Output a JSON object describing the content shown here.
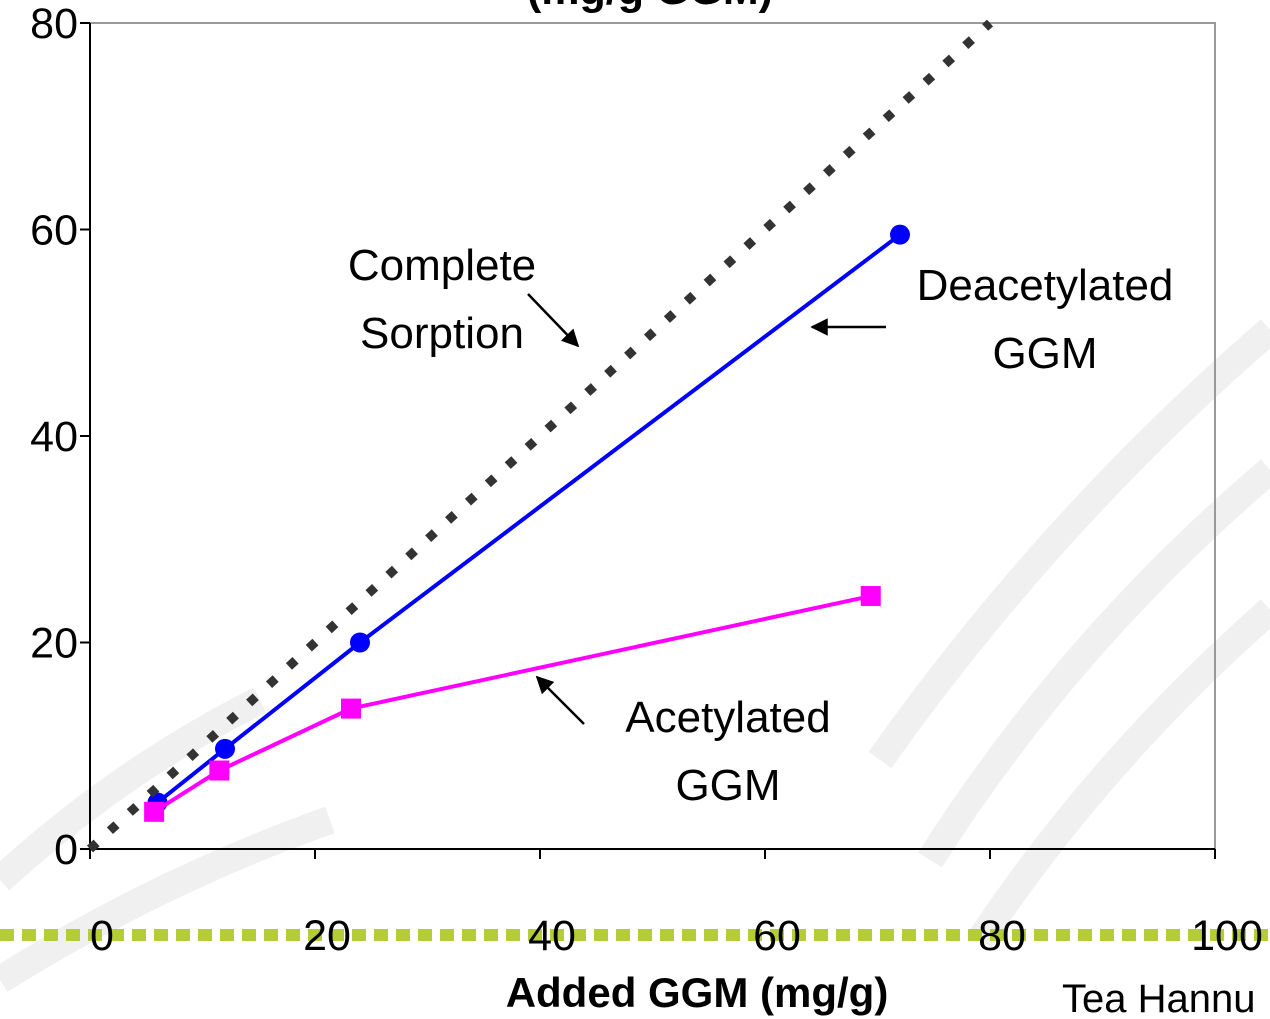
{
  "chart_data": {
    "type": "line",
    "title": "(mg/g GGM)",
    "xlabel": "Added GGM (mg/g)",
    "ylabel": "",
    "xlim": [
      0,
      100
    ],
    "ylim": [
      0,
      80
    ],
    "x_ticks": [
      "0",
      "20",
      "40",
      "60",
      "80",
      "100"
    ],
    "y_ticks": [
      "0",
      "20",
      "40",
      "60",
      "80"
    ],
    "grid": false,
    "series": [
      {
        "name": "Deacetylated GGM",
        "color": "#0000ff",
        "marker": "circle",
        "x": [
          6,
          12,
          24,
          72
        ],
        "y": [
          4.5,
          9.7,
          20.0,
          59.5
        ]
      },
      {
        "name": "Acetylated GGM",
        "color": "#ff00ff",
        "marker": "square",
        "x": [
          5.7,
          11.5,
          23.2,
          69.4
        ],
        "y": [
          3.6,
          7.6,
          13.6,
          24.5
        ]
      },
      {
        "name": "Complete Sorption",
        "color": "#333333",
        "style": "dotted",
        "x": [
          0,
          80
        ],
        "y": [
          0,
          80
        ]
      }
    ],
    "annotations": [
      {
        "lines": [
          "Complete",
          "Sorption"
        ],
        "target_series": "Complete Sorption"
      },
      {
        "lines": [
          "Deacetylated",
          "GGM"
        ],
        "target_series": "Deacetylated GGM"
      },
      {
        "lines": [
          "Acetylated",
          "GGM"
        ],
        "target_series": "Acetylated GGM"
      }
    ],
    "credit": "Tea Hannu",
    "accent_line_color": "#b5cc3a"
  }
}
